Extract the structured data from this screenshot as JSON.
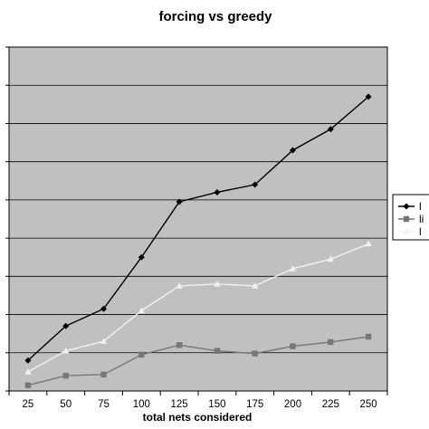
{
  "chart_data": {
    "type": "line",
    "title": "forcing vs greedy",
    "xlabel": "total nets considered",
    "ylabel": "",
    "categories": [
      "25",
      "50",
      "75",
      "100",
      "125",
      "150",
      "175",
      "200",
      "225",
      "250"
    ],
    "ylim": [
      0,
      9
    ],
    "grid": true,
    "legend_position": "right",
    "plot_background": "#c0c0c0",
    "series": [
      {
        "name": "l",
        "color": "#000000",
        "marker": "diamond",
        "values": [
          0.8,
          1.7,
          2.15,
          3.5,
          4.95,
          5.2,
          5.4,
          6.3,
          6.85,
          7.7
        ]
      },
      {
        "name": "li",
        "color": "#777777",
        "marker": "square",
        "values": [
          0.15,
          0.4,
          0.43,
          0.95,
          1.2,
          1.05,
          0.98,
          1.17,
          1.28,
          1.42
        ]
      },
      {
        "name": "l",
        "color": "#f2f2f2",
        "marker": "triangle",
        "values": [
          0.5,
          1.05,
          1.3,
          2.1,
          2.75,
          2.8,
          2.75,
          3.2,
          3.45,
          3.85
        ]
      }
    ]
  }
}
